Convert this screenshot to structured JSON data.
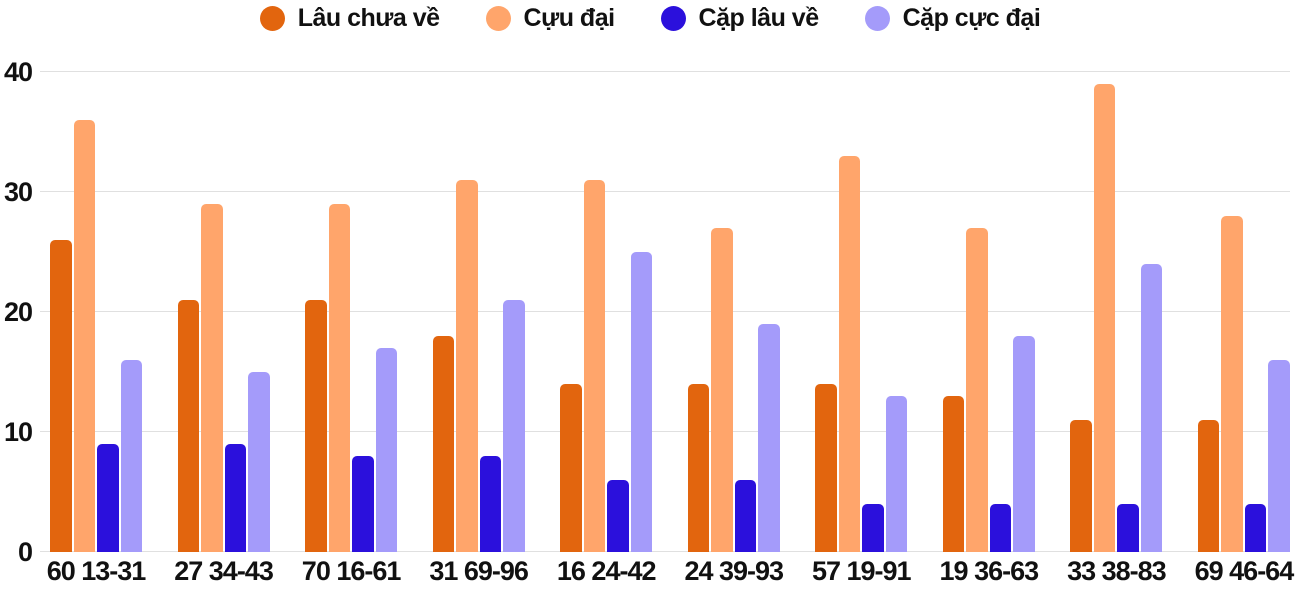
{
  "chart_data": {
    "type": "bar",
    "title": "",
    "xlabel": "",
    "ylabel": "",
    "categories": [
      "60 13-31",
      "27 34-43",
      "70 16-61",
      "31 69-96",
      "16 24-42",
      "24 39-93",
      "57 19-91",
      "19 36-63",
      "33 38-83",
      "69 46-64"
    ],
    "series": [
      {
        "name": "Lâu chưa về",
        "color": "#E2650E",
        "values": [
          26,
          21,
          21,
          18,
          14,
          14,
          14,
          13,
          11,
          11
        ]
      },
      {
        "name": "Cựu đại",
        "color": "#FFA56B",
        "values": [
          36,
          29,
          29,
          31,
          31,
          27,
          33,
          27,
          39,
          28
        ]
      },
      {
        "name": "Cặp lâu về",
        "color": "#2B10DC",
        "values": [
          9,
          9,
          8,
          8,
          6,
          6,
          4,
          4,
          4,
          4
        ]
      },
      {
        "name": "Cặp cực đại",
        "color": "#A49BFA",
        "values": [
          16,
          15,
          17,
          21,
          25,
          19,
          13,
          18,
          24,
          16
        ]
      }
    ],
    "ylim": [
      0,
      40
    ],
    "yticks": [
      0,
      10,
      20,
      30,
      40
    ],
    "grid": true,
    "legend_position": "top",
    "colors": {
      "grid": "#E0E0E0",
      "text": "#111111",
      "background": "#FFFFFF"
    }
  }
}
